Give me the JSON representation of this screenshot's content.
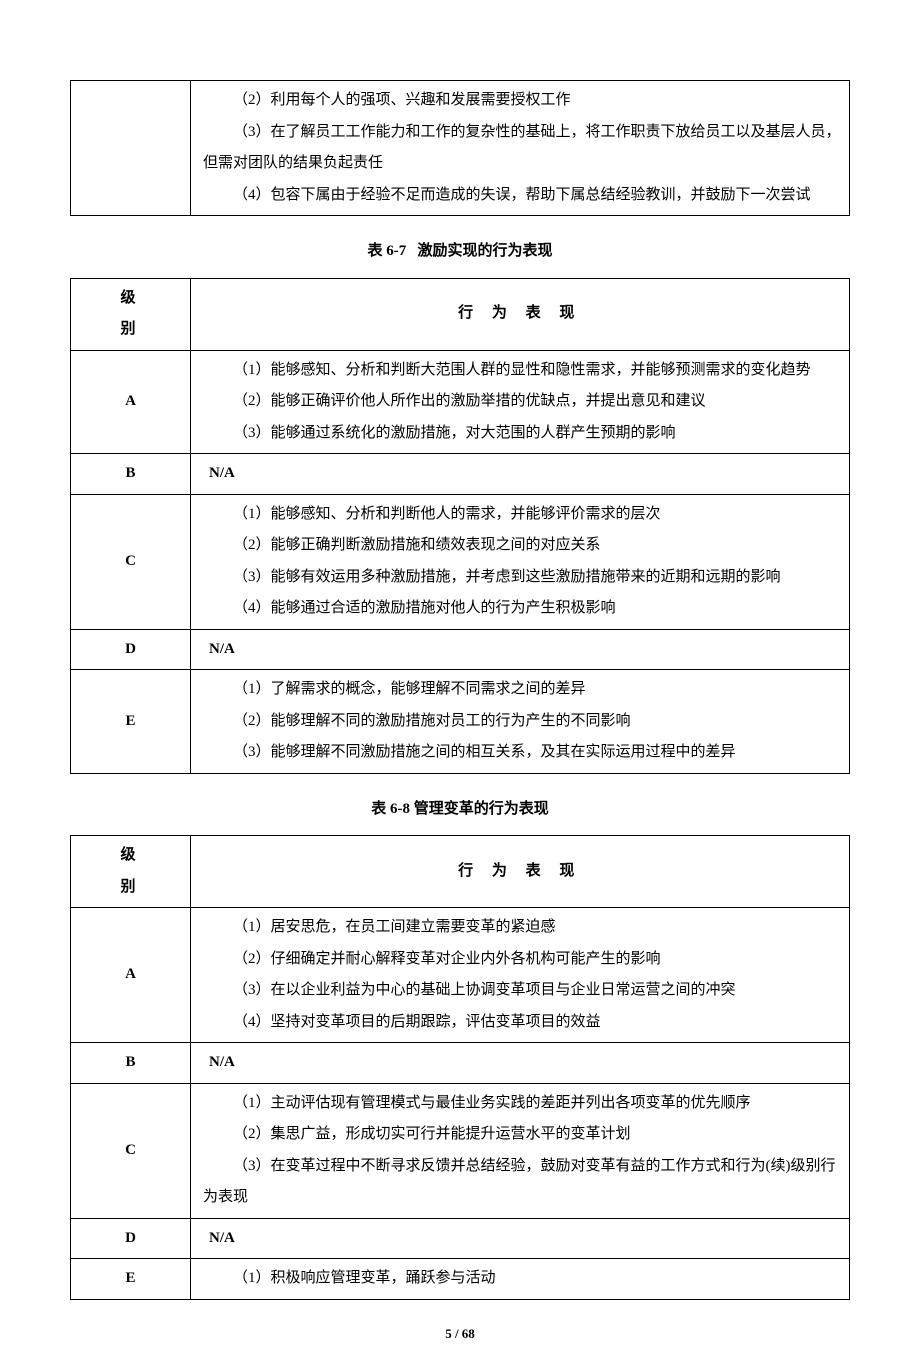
{
  "table0": {
    "rows": {
      "blank": {
        "items": [
          "（2）利用每个人的强项、兴趣和发展需要授权工作",
          "（3）在了解员工工作能力和工作的复杂性的基础上，将工作职责下放给员工以及基层人员，但需对团队的结果负起责任",
          "（4）包容下属由于经验不足而造成的失误，帮助下属总结经验教训，并鼓励下一次尝试"
        ]
      }
    }
  },
  "table67": {
    "caption_prefix": "表",
    "caption_num": "6-7",
    "caption_title": "激励实现的行为表现",
    "header_level": "级别",
    "header_desc": "行 为 表 现",
    "rows": {
      "A": {
        "level": "A",
        "items": [
          "（1）能够感知、分析和判断大范围人群的显性和隐性需求，并能够预测需求的变化趋势",
          "（2）能够正确评价他人所作出的激励举措的优缺点，并提出意见和建议",
          "（3）能够通过系统化的激励措施，对大范围的人群产生预期的影响"
        ]
      },
      "B": {
        "level": "B",
        "na": "N/A"
      },
      "C": {
        "level": "C",
        "items": [
          "（1）能够感知、分析和判断他人的需求，并能够评价需求的层次",
          "（2）能够正确判断激励措施和绩效表现之间的对应关系",
          "（3）能够有效运用多种激励措施，并考虑到这些激励措施带来的近期和远期的影响",
          "（4）能够通过合适的激励措施对他人的行为产生积极影响"
        ]
      },
      "D": {
        "level": "D",
        "na": "N/A"
      },
      "E": {
        "level": "E",
        "items": [
          "（1）了解需求的概念，能够理解不同需求之间的差异",
          "（2）能够理解不同的激励措施对员工的行为产生的不同影响",
          "（3）能够理解不同激励措施之间的相互关系，及其在实际运用过程中的差异"
        ]
      }
    }
  },
  "table68": {
    "caption_prefix": "表",
    "caption_num": "6-8",
    "caption_title": "管理变革的行为表现",
    "header_level": "级别",
    "header_desc": "行 为 表 现",
    "rows": {
      "A": {
        "level": "A",
        "items": [
          "（1）居安思危，在员工间建立需要变革的紧迫感",
          "（2）仔细确定并耐心解释变革对企业内外各机构可能产生的影响",
          "（3）在以企业利益为中心的基础上协调变革项目与企业日常运营之间的冲突",
          "（4）坚持对变革项目的后期跟踪，评估变革项目的效益"
        ]
      },
      "B": {
        "level": "B",
        "na": "N/A"
      },
      "C": {
        "level": "C",
        "items": [
          "（1）主动评估现有管理模式与最佳业务实践的差距并列出各项变革的优先顺序",
          "（2）集思广益，形成切实可行并能提升运营水平的变革计划",
          "（3）在变革过程中不断寻求反馈并总结经验，鼓励对变革有益的工作方式和行为(续)级别行为表现"
        ]
      },
      "D": {
        "level": "D",
        "na": "N/A"
      },
      "E": {
        "level": "E",
        "items": [
          "（1）积极响应管理变革，踊跃参与活动"
        ]
      }
    }
  },
  "footer": "5 / 68"
}
